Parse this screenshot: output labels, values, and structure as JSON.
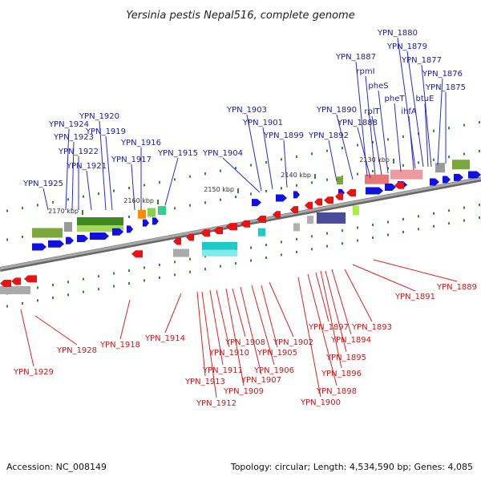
{
  "title": "Yersinia pestis Nepal516, complete genome",
  "footer": {
    "accession": "Accession: NC_008149",
    "topology": "Topology: circular; Length: 4,534,590 bp; Genes: 4,085"
  },
  "ticks": [
    "2170 kbp",
    "2160 kbp",
    "2150 kbp",
    "2140 kbp",
    "2130 kbp"
  ],
  "upper_genes": [
    "YPN_1925",
    "YPN_1924",
    "YPN_1923",
    "YPN_1922",
    "YPN_1921",
    "YPN_1920",
    "YPN_1919",
    "YPN_1917",
    "YPN_1916",
    "YPN_1915",
    "YPN_1904",
    "YPN_1903",
    "YPN_1901",
    "YPN_1899",
    "YPN_1892",
    "YPN_1890",
    "YPN_1888",
    "rplT",
    "pheS",
    "pheT",
    "ihfA",
    "btuE",
    "YPN_1875",
    "YPN_1876",
    "YPN_1877",
    "YPN_1879",
    "YPN_1880",
    "YPN_1887",
    "rpmI"
  ],
  "lower_genes": [
    "YPN_1929",
    "YPN_1928",
    "YPN_1918",
    "YPN_1914",
    "YPN_1913",
    "YPN_1912",
    "YPN_1911",
    "YPN_1910",
    "YPN_1909",
    "YPN_1908",
    "YPN_1907",
    "YPN_1906",
    "YPN_1905",
    "YPN_1902",
    "YPN_1900",
    "YPN_1898",
    "YPN_1897",
    "YPN_1896",
    "YPN_1895",
    "YPN_1894",
    "YPN_1893",
    "YPN_1891",
    "YPN_1889"
  ],
  "colors": {
    "forward_strand": "#1111dd",
    "reverse_strand": "#ee1111",
    "upper_label": "#1a1aa8",
    "lower_label": "#c81818"
  }
}
